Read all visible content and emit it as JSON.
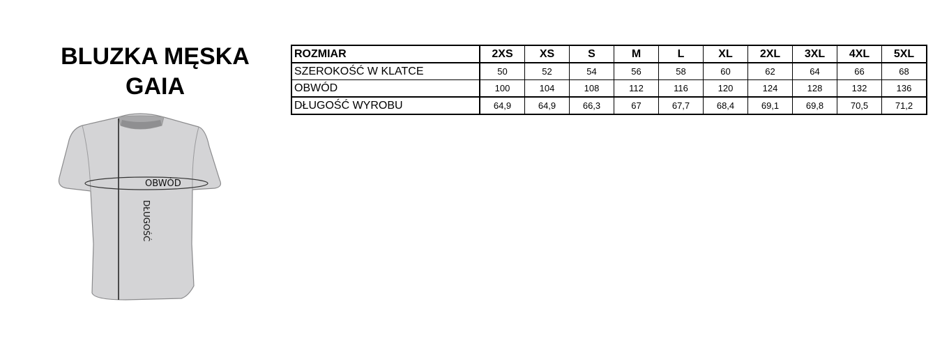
{
  "title": {
    "line1": "BLUZKA MĘSKA",
    "line2": "GAIA"
  },
  "diagram": {
    "girth_label": "OBWÓD",
    "length_label": "DŁUGOŚĆ",
    "shirt_color": "#d4d4d6"
  },
  "table": {
    "header": {
      "label": "ROZMIAR",
      "sizes": [
        "2XS",
        "XS",
        "S",
        "M",
        "L",
        "XL",
        "2XL",
        "3XL",
        "4XL",
        "5XL"
      ]
    },
    "rows": [
      {
        "label": "SZEROKOŚĆ W KLATCE",
        "values": [
          "50",
          "52",
          "54",
          "56",
          "58",
          "60",
          "62",
          "64",
          "66",
          "68"
        ]
      },
      {
        "label": "OBWÓD",
        "values": [
          "100",
          "104",
          "108",
          "112",
          "116",
          "120",
          "124",
          "128",
          "132",
          "136"
        ]
      },
      {
        "label": "DŁUGOŚĆ WYROBU",
        "values": [
          "64,9",
          "64,9",
          "66,3",
          "67",
          "67,7",
          "68,4",
          "69,1",
          "69,8",
          "70,5",
          "71,2"
        ]
      }
    ]
  }
}
